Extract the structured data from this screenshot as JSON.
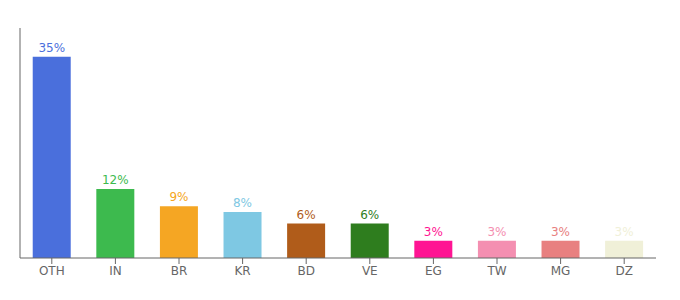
{
  "chart_data": {
    "type": "bar",
    "categories": [
      "OTH",
      "IN",
      "BR",
      "KR",
      "BD",
      "VE",
      "EG",
      "TW",
      "MG",
      "DZ"
    ],
    "values": [
      35,
      12,
      9,
      8,
      6,
      6,
      3,
      3,
      3,
      3
    ],
    "value_labels": [
      "35%",
      "12%",
      "9%",
      "8%",
      "6%",
      "6%",
      "3%",
      "3%",
      "3%",
      "3%"
    ],
    "colors": [
      "#4a6fdc",
      "#3dba4e",
      "#f5a623",
      "#7ec8e3",
      "#b05c1a",
      "#2e7d1e",
      "#ff1493",
      "#f48fb1",
      "#e88080",
      "#f0f0d8"
    ],
    "ylim": [
      0,
      40
    ],
    "grid": false,
    "data_labels": true,
    "tick_labels": "x"
  }
}
